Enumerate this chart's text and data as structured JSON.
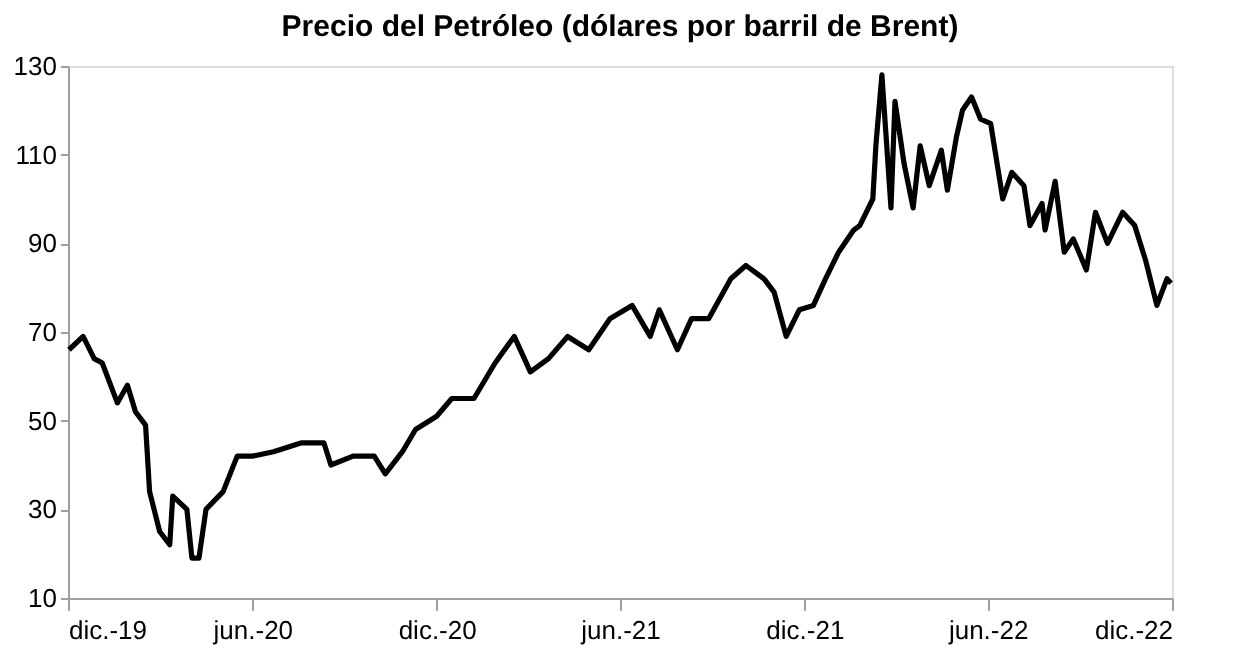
{
  "chart_data": {
    "type": "line",
    "title": "Precio del Petróleo (dólares por barril de Brent)",
    "x": [
      "2019-12-02",
      "2019-12-16",
      "2019-12-27",
      "2020-01-04",
      "2020-01-19",
      "2020-01-29",
      "2020-02-06",
      "2020-02-16",
      "2020-02-20",
      "2020-03-01",
      "2020-03-11",
      "2020-03-14",
      "2020-03-28",
      "2020-04-02",
      "2020-04-09",
      "2020-04-16",
      "2020-05-03",
      "2020-05-17",
      "2020-06-01",
      "2020-06-22",
      "2020-07-20",
      "2020-08-11",
      "2020-08-18",
      "2020-09-09",
      "2020-09-30",
      "2020-10-11",
      "2020-10-28",
      "2020-11-10",
      "2020-12-01",
      "2020-12-16",
      "2021-01-07",
      "2021-01-28",
      "2021-02-16",
      "2021-03-04",
      "2021-03-22",
      "2021-04-10",
      "2021-05-01",
      "2021-05-22",
      "2021-06-13",
      "2021-07-01",
      "2021-07-10",
      "2021-07-28",
      "2021-08-11",
      "2021-08-28",
      "2021-09-19",
      "2021-10-04",
      "2021-10-22",
      "2021-11-01",
      "2021-11-13",
      "2021-11-26",
      "2021-12-10",
      "2021-12-22",
      "2022-01-04",
      "2022-01-19",
      "2022-01-25",
      "2022-02-07",
      "2022-02-10",
      "2022-02-16",
      "2022-02-25",
      "2022-03-01",
      "2022-03-10",
      "2022-03-19",
      "2022-03-26",
      "2022-04-04",
      "2022-04-16",
      "2022-04-22",
      "2022-05-01",
      "2022-05-07",
      "2022-05-16",
      "2022-05-25",
      "2022-06-04",
      "2022-06-16",
      "2022-06-25",
      "2022-07-07",
      "2022-07-13",
      "2022-07-25",
      "2022-07-28",
      "2022-08-07",
      "2022-08-16",
      "2022-08-25",
      "2022-09-07",
      "2022-09-16",
      "2022-09-28",
      "2022-10-13",
      "2022-10-25",
      "2022-11-05",
      "2022-11-16",
      "2022-11-26",
      "2022-11-30"
    ],
    "series": [
      {
        "color": "#000000",
        "values": [
          66,
          69,
          64,
          63,
          54,
          58,
          52,
          49,
          34,
          25,
          22,
          33,
          30,
          19,
          19,
          30,
          34,
          42,
          42,
          43,
          45,
          45,
          40,
          42,
          42,
          38,
          43,
          48,
          51,
          55,
          55,
          63,
          69,
          61,
          64,
          69,
          66,
          73,
          76,
          69,
          75,
          66,
          73,
          73,
          82,
          85,
          82,
          79,
          69,
          75,
          76,
          82,
          88,
          93,
          94,
          100,
          112,
          128,
          98,
          122,
          108,
          98,
          112,
          103,
          111,
          102,
          114,
          120,
          123,
          118,
          117,
          100,
          106,
          103,
          94,
          99,
          93,
          104,
          88,
          91,
          84,
          97,
          90,
          97,
          94,
          86,
          76,
          82,
          81
        ]
      }
    ],
    "xlim": [
      "2019-12-01",
      "2022-12-01"
    ],
    "xticks": [
      {
        "value": "2019-12-01",
        "label": "dic.-19"
      },
      {
        "value": "2020-06-01",
        "label": "jun.-20"
      },
      {
        "value": "2020-12-01",
        "label": "dic.-20"
      },
      {
        "value": "2021-06-01",
        "label": "jun.-21"
      },
      {
        "value": "2021-12-01",
        "label": "dic.-21"
      },
      {
        "value": "2022-06-01",
        "label": "jun.-22"
      },
      {
        "value": "2022-12-01",
        "label": "dic.-22"
      }
    ],
    "ylim": [
      10,
      130
    ],
    "yticks": [
      10,
      30,
      50,
      70,
      90,
      110,
      130
    ],
    "grid": false,
    "legend": false,
    "marker": "none",
    "line_style": "solid"
  }
}
